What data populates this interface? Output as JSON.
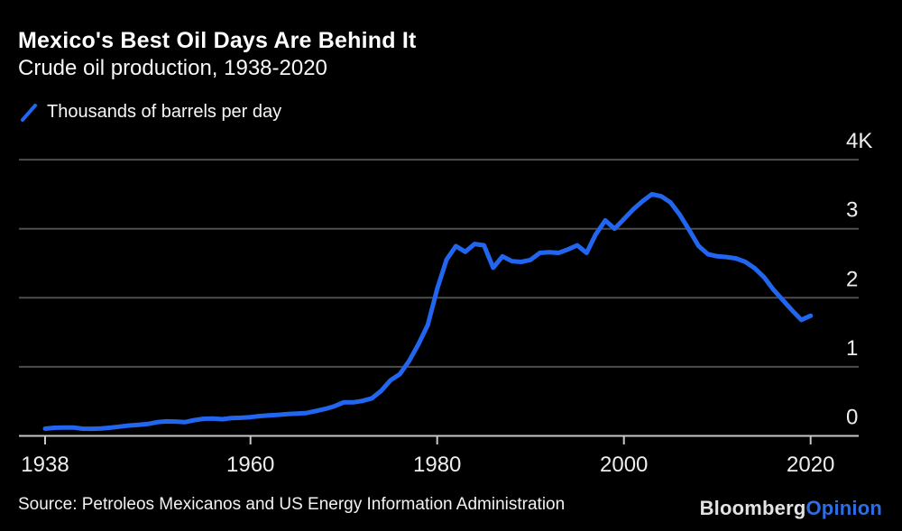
{
  "page": {
    "background": "#000000"
  },
  "header": {
    "title": "Mexico's Best Oil Days Are Behind It",
    "subtitle": "Crude oil production, 1938-2020"
  },
  "legend": {
    "label": "Thousands of barrels per day",
    "swatch_color": "#2266f0"
  },
  "colors": {
    "line": "#2266f0",
    "grid": "#4d4d4d",
    "axis": "#c8c8c8",
    "tick_label": "#ededed",
    "background": "#000000",
    "opinion_blue": "#2f6ee2"
  },
  "chart_data": {
    "type": "line",
    "title": "Mexico's Best Oil Days Are Behind It",
    "subtitle": "Crude oil production, 1938-2020",
    "xlabel": "",
    "ylabel": "Thousands of barrels per day",
    "grid": "horizontal",
    "legend_position": "top-left",
    "xlim": [
      1938,
      2021
    ],
    "ylim": [
      0,
      4000
    ],
    "x_ticks": [
      1938,
      1960,
      1980,
      2000,
      2020
    ],
    "y_ticks": [
      {
        "label": "4K",
        "value": 4000
      },
      {
        "label": "3",
        "value": 3000
      },
      {
        "label": "2",
        "value": 2000
      },
      {
        "label": "1",
        "value": 1000
      },
      {
        "label": "0",
        "value": 0
      }
    ],
    "series": [
      {
        "name": "Thousands of barrels per day",
        "color": "#2266f0",
        "x": [
          1938,
          1939,
          1940,
          1941,
          1942,
          1943,
          1944,
          1945,
          1946,
          1947,
          1948,
          1949,
          1950,
          1951,
          1952,
          1953,
          1954,
          1955,
          1956,
          1957,
          1958,
          1959,
          1960,
          1961,
          1962,
          1963,
          1964,
          1965,
          1966,
          1967,
          1968,
          1969,
          1970,
          1971,
          1972,
          1973,
          1974,
          1975,
          1976,
          1977,
          1978,
          1979,
          1980,
          1981,
          1982,
          1983,
          1984,
          1985,
          1986,
          1987,
          1988,
          1989,
          1990,
          1991,
          1992,
          1993,
          1994,
          1995,
          1996,
          1997,
          1998,
          1999,
          2000,
          2001,
          2002,
          2003,
          2004,
          2005,
          2006,
          2007,
          2008,
          2009,
          2010,
          2011,
          2012,
          2013,
          2014,
          2015,
          2016,
          2017,
          2018,
          2019,
          2020
        ],
        "values": [
          105,
          118,
          120,
          122,
          104,
          103,
          109,
          119,
          134,
          150,
          160,
          172,
          198,
          210,
          208,
          200,
          228,
          248,
          252,
          242,
          258,
          262,
          271,
          287,
          297,
          306,
          316,
          323,
          332,
          360,
          390,
          430,
          487,
          486,
          506,
          545,
          653,
          806,
          894,
          1086,
          1330,
          1608,
          2129,
          2553,
          2748,
          2666,
          2780,
          2760,
          2435,
          2600,
          2530,
          2520,
          2548,
          2650,
          2660,
          2650,
          2700,
          2760,
          2650,
          2920,
          3120,
          3000,
          3140,
          3280,
          3400,
          3500,
          3470,
          3380,
          3200,
          2980,
          2750,
          2630,
          2600,
          2590,
          2570,
          2520,
          2430,
          2300,
          2120,
          1970,
          1820,
          1680,
          1740
        ]
      }
    ]
  },
  "footer": {
    "source": "Source: Petroleos Mexicanos and US Energy Information Administration",
    "logo": {
      "bloomberg": "Bloomberg",
      "opinion": "Opinion"
    }
  }
}
